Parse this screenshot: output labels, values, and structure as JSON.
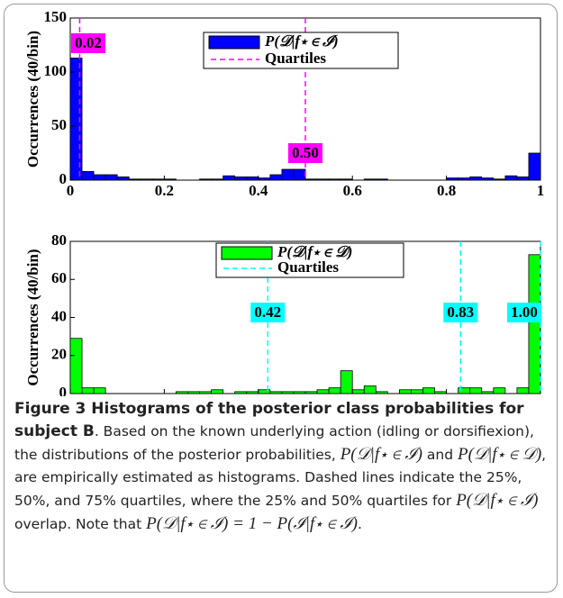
{
  "chart_data": [
    {
      "type": "histogram",
      "ylabel": "Occurrences (40/bin)",
      "bins": [
        0,
        0.025,
        0.05,
        0.075,
        0.1,
        0.125,
        0.15,
        0.175,
        0.2,
        0.225,
        0.25,
        0.275,
        0.3,
        0.325,
        0.35,
        0.375,
        0.4,
        0.425,
        0.45,
        0.475,
        0.5,
        0.525,
        0.55,
        0.575,
        0.6,
        0.625,
        0.65,
        0.675,
        0.7,
        0.725,
        0.75,
        0.775,
        0.8,
        0.825,
        0.85,
        0.875,
        0.9,
        0.925,
        0.95,
        0.975,
        1
      ],
      "series": [
        {
          "name": "P(𝒟|f⋆ ∈ ℐ)",
          "color": "#0000ff",
          "values": [
            113,
            8,
            5,
            5,
            3,
            1,
            1,
            1,
            1,
            0,
            0,
            1,
            1,
            4,
            3,
            3,
            2,
            5,
            10,
            10,
            1,
            1,
            1,
            1,
            0,
            1,
            1,
            0,
            0,
            0,
            0,
            0,
            2,
            2,
            3,
            2,
            1,
            4,
            3,
            25
          ]
        }
      ],
      "quartiles": {
        "name": "Quartiles",
        "color": "#ff00ff",
        "values": [
          {
            "value": 0.02,
            "label": "0.02"
          },
          {
            "value": 0.5,
            "label": "0.50"
          }
        ]
      },
      "xlim": [
        0,
        1
      ],
      "xticks": [
        0,
        {
          "value": 0.2,
          "label": "0.2"
        },
        {
          "value": 0.4,
          "label": "0.4"
        },
        {
          "value": 0.6,
          "label": "0.6"
        },
        {
          "value": 0.8,
          "label": "0.8"
        },
        1
      ],
      "ylim": [
        0,
        150
      ],
      "yticks": [
        0,
        50,
        100,
        150
      ]
    },
    {
      "type": "histogram",
      "ylabel": "Occurrences (40/bin)",
      "bins": [
        0,
        0.025,
        0.05,
        0.075,
        0.1,
        0.125,
        0.15,
        0.175,
        0.2,
        0.225,
        0.25,
        0.275,
        0.3,
        0.325,
        0.35,
        0.375,
        0.4,
        0.425,
        0.45,
        0.475,
        0.5,
        0.525,
        0.55,
        0.575,
        0.6,
        0.625,
        0.65,
        0.675,
        0.7,
        0.725,
        0.75,
        0.775,
        0.8,
        0.825,
        0.85,
        0.875,
        0.9,
        0.925,
        0.95,
        0.975,
        1
      ],
      "series": [
        {
          "name": "P(𝒟|f⋆ ∈ 𝒟)",
          "color": "#00ff00",
          "values": [
            29,
            3,
            3,
            0,
            0,
            0,
            0,
            0,
            0,
            1,
            1,
            1,
            2,
            0,
            1,
            1,
            2,
            1,
            1,
            1,
            1,
            2,
            3,
            12,
            2,
            4,
            1,
            0,
            2,
            2,
            3,
            1,
            0,
            3,
            3,
            1,
            3,
            0,
            3,
            73
          ]
        }
      ],
      "quartiles": {
        "name": "Quartiles",
        "color": "#00ffff",
        "values": [
          {
            "value": 0.42,
            "label": "0.42"
          },
          {
            "value": 0.83,
            "label": "0.83"
          },
          {
            "value": 1,
            "label": "1.00"
          }
        ]
      },
      "xlim": [
        0,
        1
      ],
      "xticks": [
        0,
        {
          "value": 0.2,
          "label": "0.2"
        },
        {
          "value": 0.4,
          "label": "0.4"
        },
        {
          "value": 0.6,
          "label": "0.6"
        },
        {
          "value": 0.8,
          "label": "0.8"
        },
        1
      ],
      "ylim": [
        0,
        80
      ],
      "yticks": [
        0,
        20,
        40,
        60,
        80
      ]
    }
  ],
  "caption": {
    "bold": "Figure 3 Histograms of the posterior class probabilities for subject B",
    "parts": [
      ". Based on the known underlying action (idling or dorsifiexion), the distributions of the posterior probabilities, ",
      "P(𝒟|f⋆ ∈ ℐ)",
      " and ",
      "P(𝒟|f⋆ ∈ 𝒟)",
      ", are empirically estimated as histograms. Dashed lines indicate the 25%, 50%, and 75% quartiles, where the 25% and 50% quartiles for ",
      "P(𝒟|f⋆ ∈ ℐ)",
      " overlap. Note that ",
      "P(𝒟|f⋆ ∈ ℐ) = 1 − P(ℐ|f⋆ ∈ ℐ)",
      "."
    ]
  }
}
